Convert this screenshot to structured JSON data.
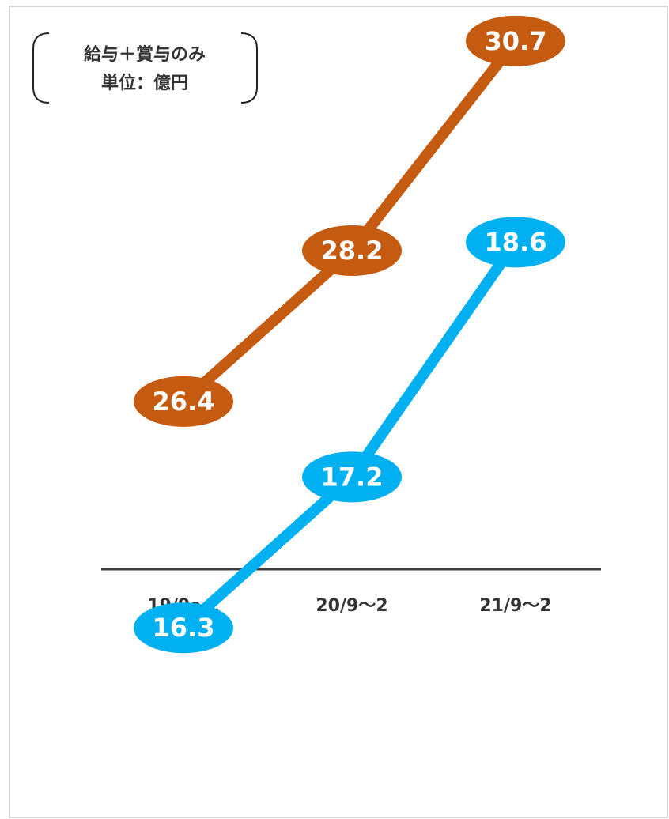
{
  "chart_data": {
    "type": "line",
    "annotation": [
      "給与＋賞与のみ",
      "単位：億円"
    ],
    "categories": [
      "19/9〜2",
      "20/9〜2",
      "21/9〜2"
    ],
    "series": [
      {
        "color": "#c55a11",
        "values": [
          26.4,
          28.2,
          30.7
        ]
      },
      {
        "color": "#00b0f0",
        "values": [
          16.3,
          17.2,
          18.6
        ],
        "axis": "y2"
      }
    ],
    "ylim": [
      24.4,
      31.0
    ],
    "y2lim": [
      16.65,
      19.95
    ]
  }
}
